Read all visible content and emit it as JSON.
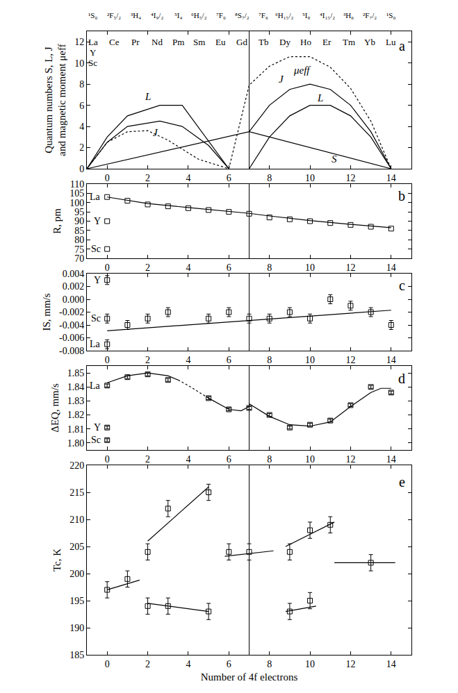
{
  "chart_data": [
    {
      "type": "line",
      "panel_label": "a",
      "ylabel": "Quantum numbers S, L, J and magnetic moment μeff",
      "xlim": [
        -1,
        15
      ],
      "xticks": [
        0,
        2,
        4,
        6,
        8,
        10,
        12,
        14
      ],
      "ylim": [
        0,
        13
      ],
      "yticks": [
        0,
        2,
        4,
        6,
        8,
        10,
        12
      ],
      "grid": false,
      "color": "#000000",
      "reference_line_x": 7,
      "top_labels": [
        "¹S₀",
        "²F₅/₂",
        "³H₄",
        "⁴I₉/₂",
        "⁵I₄",
        "⁶H₅/₂",
        "⁷F₀",
        "⁸S₇/₂",
        "⁷F₆",
        "⁶H₁₅/₂",
        "⁵I₈",
        "⁴I₁₅/₂",
        "³H₆",
        "²F₇/₂",
        "¹S₀"
      ],
      "element_labels": [
        "La",
        "Ce",
        "Pr",
        "Nd",
        "Pm",
        "Sm",
        "Eu",
        "Gd",
        "Tb",
        "Dy",
        "Ho",
        "Er",
        "Tm",
        "Yb",
        "Lu"
      ],
      "element_labels_extra": [
        "Y",
        "Sc"
      ],
      "series": [
        {
          "x": [
            -1,
            0,
            1,
            2.6,
            3.7,
            6
          ],
          "values": [
            0,
            3,
            5,
            6,
            6,
            0
          ],
          "line_style": "solid",
          "marker": "none"
        },
        {
          "x": [
            -1,
            0,
            1,
            2.6,
            3.7,
            5,
            6
          ],
          "values": [
            0,
            2.5,
            4,
            4.5,
            4,
            2.2,
            0
          ],
          "line_style": "solid",
          "marker": "none"
        },
        {
          "x": [
            -1,
            7,
            14
          ],
          "values": [
            0,
            3.5,
            0
          ],
          "line_style": "solid",
          "marker": "none"
        },
        {
          "x": [
            7,
            8,
            9,
            10,
            11,
            12,
            13,
            14
          ],
          "values": [
            0,
            3,
            5,
            6,
            6,
            5,
            3,
            0
          ],
          "line_style": "solid",
          "marker": "none"
        },
        {
          "x": [
            7,
            8,
            9,
            10,
            11,
            12,
            13,
            14
          ],
          "values": [
            3.5,
            6,
            7.5,
            8,
            7.5,
            6,
            3.5,
            0
          ],
          "line_style": "solid",
          "marker": "none"
        },
        {
          "x": [
            -1,
            0,
            1,
            2,
            3,
            4.5,
            6,
            7,
            8,
            9,
            10,
            11,
            12,
            13,
            14
          ],
          "values": [
            0,
            2.5,
            3.5,
            3.6,
            2.7,
            0.9,
            0,
            7.9,
            9.7,
            10.6,
            10.6,
            9.6,
            7.6,
            4.5,
            0
          ],
          "line_style": "dotted",
          "marker": "none"
        }
      ],
      "curve_labels": [
        {
          "text": "L",
          "x": 2.0,
          "y": 6.8
        },
        {
          "text": "J",
          "x": 2.4,
          "y": 3.4
        },
        {
          "text": "S",
          "x": 11.2,
          "y": 0.9
        },
        {
          "text": "L",
          "x": 10.5,
          "y": 6.7
        },
        {
          "text": "J",
          "x": 8.6,
          "y": 8.5
        },
        {
          "text": "μeff",
          "x": 9.6,
          "y": 9.3
        }
      ]
    },
    {
      "type": "scatter",
      "panel_label": "b",
      "ylabel": "R, pm",
      "xlim": [
        -1,
        15
      ],
      "xticks": [
        0,
        2,
        4,
        6,
        8,
        10,
        12,
        14
      ],
      "ylim": [
        70,
        110
      ],
      "yticks": [
        70,
        75,
        80,
        85,
        90,
        95,
        100,
        105,
        110
      ],
      "grid": false,
      "color": "#000000",
      "reference_line_x": 7,
      "series": [
        {
          "x": [
            0,
            0,
            0,
            1,
            2,
            3,
            4,
            5,
            6,
            7,
            8,
            9,
            10,
            11,
            12,
            13,
            14
          ],
          "values": [
            103,
            90,
            75,
            101,
            99,
            98,
            97,
            96,
            95,
            94,
            92,
            91,
            90,
            89,
            88,
            87,
            86
          ],
          "line_style": "none",
          "marker": "square-open"
        },
        {
          "x": [
            0,
            2,
            4,
            6,
            7,
            8,
            10,
            12,
            14
          ],
          "values": [
            103,
            99.5,
            97.3,
            95.3,
            94.2,
            92.8,
            90.3,
            88.3,
            86.5
          ],
          "line_style": "solid",
          "marker": "none"
        }
      ],
      "point_labels": [
        {
          "text": "La",
          "x": 0,
          "y": 103
        },
        {
          "text": "Y",
          "x": 0,
          "y": 90
        },
        {
          "text": "Sc",
          "x": 0,
          "y": 75
        }
      ]
    },
    {
      "type": "scatter",
      "panel_label": "c",
      "ylabel": "IS, mm/s",
      "xlim": [
        -1,
        15
      ],
      "xticks": [
        0,
        2,
        4,
        6,
        8,
        10,
        12,
        14
      ],
      "ylim": [
        -0.008,
        0.004
      ],
      "yticks": [
        -0.008,
        -0.006,
        -0.004,
        -0.002,
        {
          "value": 0,
          "label": "0.000"
        },
        0.002,
        0.004
      ],
      "grid": false,
      "color": "#000000",
      "reference_line_x": 7,
      "series": [
        {
          "x": [
            0,
            0,
            0,
            1,
            2,
            3,
            5,
            6,
            7,
            8,
            9,
            10,
            11,
            12,
            13,
            14
          ],
          "values": [
            -0.007,
            0.003,
            -0.003,
            -0.004,
            -0.003,
            -0.002,
            -0.003,
            -0.002,
            -0.003,
            -0.003,
            -0.002,
            -0.003,
            0,
            -0.001,
            -0.002,
            -0.004
          ],
          "error": [
            0.0007,
            0.0007,
            0.0007,
            0.0007,
            0.0007,
            0.0007,
            0.0007,
            0.0007,
            0.0007,
            0.0007,
            0.0007,
            0.0007,
            0.0007,
            0.0007,
            0.0007,
            0.0007
          ],
          "line_style": "none",
          "marker": "square-open"
        },
        {
          "x": [
            0,
            14
          ],
          "values": [
            -0.0049,
            -0.0017
          ],
          "line_style": "solid",
          "marker": "none"
        }
      ],
      "point_labels": [
        {
          "text": "Y",
          "x": 0,
          "y": 0.003
        },
        {
          "text": "Sc",
          "x": 0,
          "y": -0.003
        },
        {
          "text": "La",
          "x": 0,
          "y": -0.007
        }
      ]
    },
    {
      "type": "scatter",
      "panel_label": "d",
      "ylabel": "ΔEQ, mm/s",
      "xlim": [
        -1,
        15
      ],
      "xticks": [
        0,
        2,
        4,
        6,
        8,
        10,
        12,
        14
      ],
      "ylim": [
        1.795,
        1.855
      ],
      "yticks": [
        {
          "value": 1.8,
          "label": "1.80"
        },
        1.81,
        1.82,
        1.83,
        1.84,
        1.85
      ],
      "grid": false,
      "color": "#000000",
      "reference_line_x": 7,
      "series": [
        {
          "x": [
            0,
            0,
            0,
            1,
            2,
            3,
            5,
            6,
            7,
            8,
            9,
            10,
            11,
            12,
            13,
            14
          ],
          "values": [
            1.841,
            1.811,
            1.802,
            1.847,
            1.849,
            1.845,
            1.832,
            1.824,
            1.825,
            1.82,
            1.811,
            1.813,
            1.816,
            1.827,
            1.84,
            1.836
          ],
          "error": [
            0.001,
            0.001,
            0.001,
            0.001,
            0.001,
            0.001,
            0.001,
            0.001,
            0.001,
            0.001,
            0.001,
            0.001,
            0.001,
            0.001,
            0.001,
            0.001
          ],
          "line_style": "none",
          "marker": "square-open"
        },
        {
          "x": [
            0,
            1,
            2,
            3,
            3.5
          ],
          "values": [
            1.843,
            1.848,
            1.85,
            1.848,
            1.845
          ],
          "line_style": "solid",
          "marker": "none"
        },
        {
          "x": [
            3.5,
            4,
            5
          ],
          "values": [
            1.845,
            1.841,
            1.832
          ],
          "line_style": "dotted",
          "marker": "none"
        },
        {
          "x": [
            5,
            6,
            6.6,
            7
          ],
          "values": [
            1.832,
            1.824,
            1.823,
            1.826
          ],
          "line_style": "solid",
          "marker": "none"
        },
        {
          "x": [
            7,
            8,
            9,
            10,
            11,
            12,
            13,
            13.5,
            14
          ],
          "values": [
            1.828,
            1.819,
            1.813,
            1.812,
            1.815,
            1.826,
            1.836,
            1.839,
            1.839
          ],
          "line_style": "solid",
          "marker": "none"
        }
      ],
      "point_labels": [
        {
          "text": "La",
          "x": 0,
          "y": 1.841
        },
        {
          "text": "Y",
          "x": 0,
          "y": 1.811
        },
        {
          "text": "Sc",
          "x": 0,
          "y": 1.802
        }
      ]
    },
    {
      "type": "scatter",
      "panel_label": "e",
      "ylabel": "Tc, K",
      "xlabel": "Number of 4f electrons",
      "xlim": [
        -1,
        15
      ],
      "xticks": [
        0,
        2,
        4,
        6,
        8,
        10,
        12,
        14
      ],
      "ylim": [
        185,
        220
      ],
      "yticks": [
        185,
        190,
        195,
        200,
        205,
        210,
        215,
        220
      ],
      "grid": false,
      "color": "#000000",
      "reference_line_x": 7,
      "series": [
        {
          "x": [
            0,
            1,
            2,
            2,
            3,
            3,
            5,
            5,
            6,
            7,
            9,
            9,
            10,
            10,
            11,
            13
          ],
          "values": [
            197,
            199,
            204,
            194,
            212,
            194,
            215,
            193,
            204,
            204,
            204,
            193,
            208,
            195,
            209,
            202
          ],
          "error": [
            1.5,
            1.5,
            1.5,
            1.5,
            1.5,
            1.5,
            1.5,
            1.5,
            1.5,
            1.5,
            1.5,
            1.5,
            1.5,
            1.5,
            1.5,
            1.5
          ],
          "line_style": "none",
          "marker": "square-open"
        },
        {
          "x": [
            0,
            1.6
          ],
          "values": [
            197,
            198.8
          ],
          "line_style": "solid",
          "marker": "none"
        },
        {
          "x": [
            2,
            5
          ],
          "values": [
            206,
            216
          ],
          "line_style": "solid",
          "marker": "none"
        },
        {
          "x": [
            2,
            5
          ],
          "values": [
            194.5,
            193
          ],
          "line_style": "solid",
          "marker": "none"
        },
        {
          "x": [
            5.8,
            8.2
          ],
          "values": [
            203.2,
            204.2
          ],
          "line_style": "solid",
          "marker": "none"
        },
        {
          "x": [
            8.8,
            11.2
          ],
          "values": [
            205,
            209.5
          ],
          "line_style": "solid",
          "marker": "none"
        },
        {
          "x": [
            8.8,
            10.3
          ],
          "values": [
            193,
            194
          ],
          "line_style": "solid",
          "marker": "none"
        },
        {
          "x": [
            11.2,
            14.2
          ],
          "values": [
            202,
            202
          ],
          "line_style": "solid",
          "marker": "none"
        }
      ]
    }
  ]
}
